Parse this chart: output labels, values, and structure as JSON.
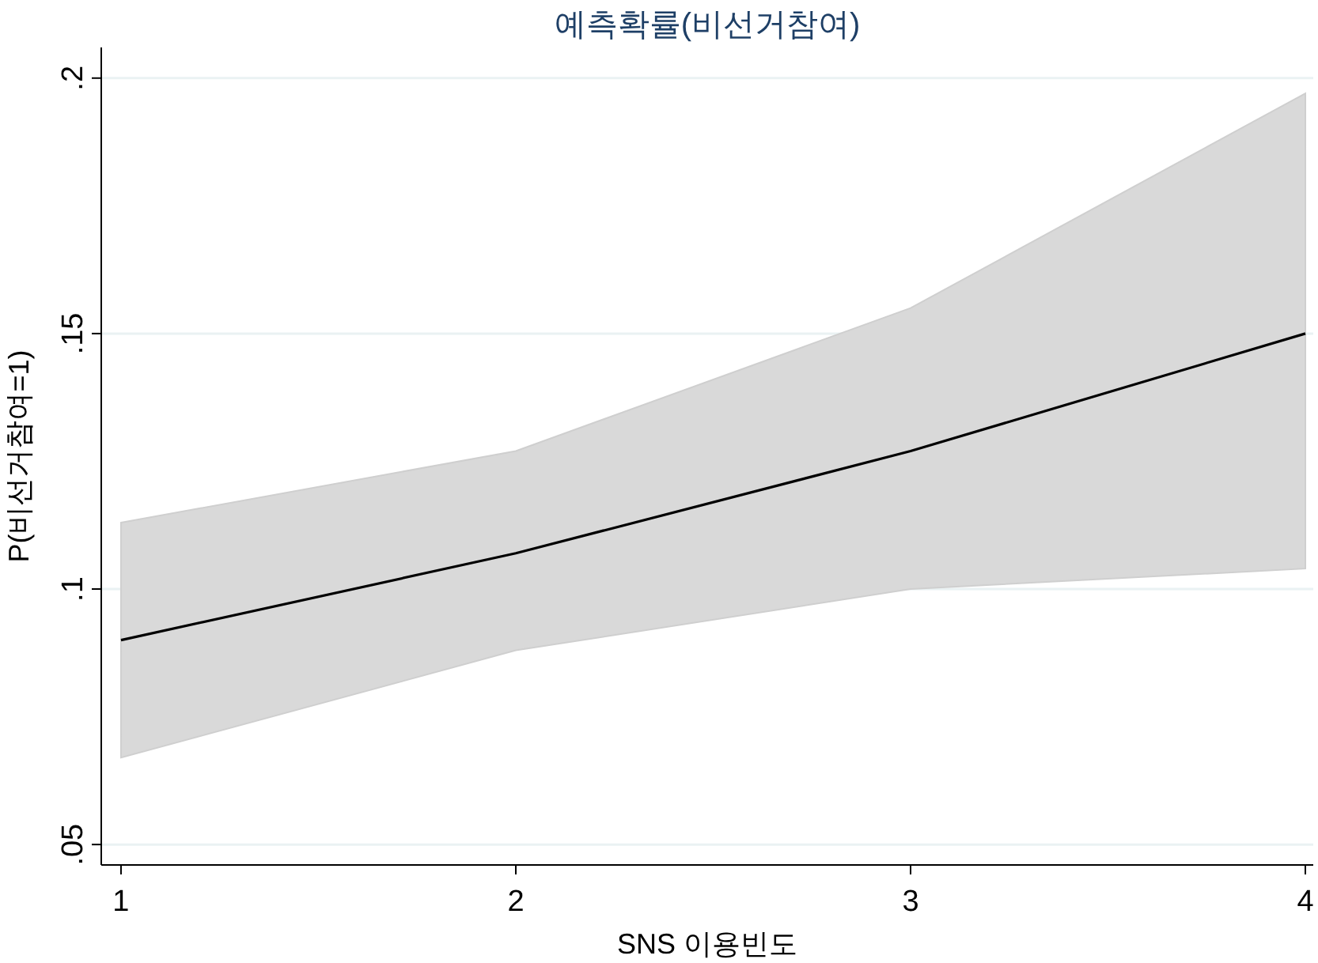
{
  "chart_data": {
    "type": "line",
    "title": "예측확률(비선거참여)",
    "xlabel": "SNS 이용빈도",
    "ylabel": "P(비선거참여=1)",
    "x": [
      1,
      2,
      3,
      4
    ],
    "series": [
      {
        "color": "#000000",
        "values": [
          0.09,
          0.107,
          0.127,
          0.15
        ],
        "lower": [
          0.067,
          0.088,
          0.1,
          0.104
        ],
        "upper": [
          0.113,
          0.127,
          0.155,
          0.197
        ]
      }
    ],
    "xlim": [
      0.95,
      4.02
    ],
    "ylim": [
      0.046,
      0.206
    ],
    "xticks": [
      1,
      2,
      3,
      4
    ],
    "yticks": [
      {
        "value": 0.05,
        "label": ".05"
      },
      {
        "value": 0.1,
        "label": ".1"
      },
      {
        "value": 0.15,
        "label": ".15"
      },
      {
        "value": 0.2,
        "label": ".2"
      }
    ],
    "grid": "y",
    "marker": "none",
    "line_style": "solid"
  }
}
